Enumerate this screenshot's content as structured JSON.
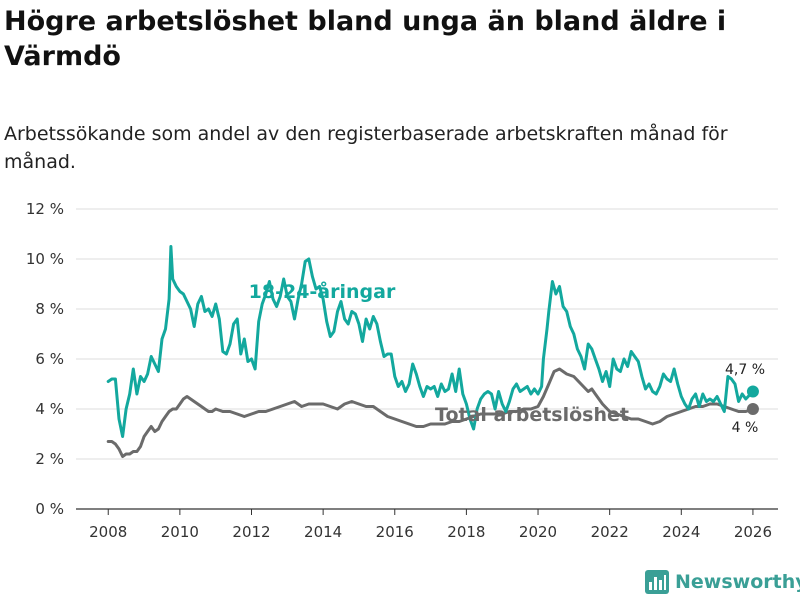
{
  "title": "Högre arbetslöshet bland unga än bland äldre i Värmdö",
  "subtitle": "Arbetssökande som andel av den registerbaserade arbetskraften månad för månad.",
  "brand": "Newsworthy",
  "colors": {
    "young": "#13a89e",
    "total": "#6b6b6b",
    "grid": "#dddddd",
    "brand": "#3a9f96"
  },
  "chart_data": {
    "type": "line",
    "title": "Högre arbetslöshet bland unga än bland äldre i Värmdö",
    "subtitle": "Arbetssökande som andel av den registerbaserade arbetskraften månad för månad.",
    "xlim": [
      2007.1,
      2026.7
    ],
    "ylim": [
      0,
      12
    ],
    "x_ticks": [
      2008,
      2010,
      2012,
      2014,
      2016,
      2018,
      2020,
      2022,
      2024,
      2026
    ],
    "y_ticks": [
      0,
      2,
      4,
      6,
      8,
      10,
      12
    ],
    "y_tick_labels": [
      "0 %",
      "2 %",
      "4 %",
      "6 %",
      "8 %",
      "10 %",
      "12 %"
    ],
    "grid": true,
    "series": [
      {
        "name": "18-24-åringar",
        "label": "18-24-åringar",
        "end_label": "4,7 %",
        "color": "#13a89e",
        "points": [
          [
            2008.0,
            5.1
          ],
          [
            2008.1,
            5.2
          ],
          [
            2008.2,
            5.2
          ],
          [
            2008.3,
            3.6
          ],
          [
            2008.4,
            2.9
          ],
          [
            2008.5,
            4.0
          ],
          [
            2008.6,
            4.6
          ],
          [
            2008.7,
            5.6
          ],
          [
            2008.8,
            4.6
          ],
          [
            2008.9,
            5.3
          ],
          [
            2009.0,
            5.1
          ],
          [
            2009.1,
            5.4
          ],
          [
            2009.2,
            6.1
          ],
          [
            2009.3,
            5.8
          ],
          [
            2009.4,
            5.5
          ],
          [
            2009.5,
            6.8
          ],
          [
            2009.6,
            7.2
          ],
          [
            2009.7,
            8.4
          ],
          [
            2009.75,
            10.5
          ],
          [
            2009.8,
            9.2
          ],
          [
            2009.9,
            8.9
          ],
          [
            2010.0,
            8.7
          ],
          [
            2010.1,
            8.6
          ],
          [
            2010.2,
            8.3
          ],
          [
            2010.3,
            8.0
          ],
          [
            2010.4,
            7.3
          ],
          [
            2010.5,
            8.2
          ],
          [
            2010.6,
            8.5
          ],
          [
            2010.7,
            7.9
          ],
          [
            2010.8,
            8.0
          ],
          [
            2010.9,
            7.7
          ],
          [
            2011.0,
            8.2
          ],
          [
            2011.1,
            7.6
          ],
          [
            2011.2,
            6.3
          ],
          [
            2011.3,
            6.2
          ],
          [
            2011.4,
            6.6
          ],
          [
            2011.5,
            7.4
          ],
          [
            2011.6,
            7.6
          ],
          [
            2011.7,
            6.2
          ],
          [
            2011.8,
            6.8
          ],
          [
            2011.9,
            5.9
          ],
          [
            2012.0,
            6.0
          ],
          [
            2012.1,
            5.6
          ],
          [
            2012.2,
            7.5
          ],
          [
            2012.3,
            8.2
          ],
          [
            2012.4,
            8.6
          ],
          [
            2012.5,
            9.1
          ],
          [
            2012.6,
            8.4
          ],
          [
            2012.7,
            8.1
          ],
          [
            2012.8,
            8.5
          ],
          [
            2012.9,
            9.2
          ],
          [
            2013.0,
            8.5
          ],
          [
            2013.1,
            8.3
          ],
          [
            2013.2,
            7.6
          ],
          [
            2013.3,
            8.4
          ],
          [
            2013.4,
            9.0
          ],
          [
            2013.5,
            9.9
          ],
          [
            2013.6,
            10.0
          ],
          [
            2013.7,
            9.3
          ],
          [
            2013.8,
            8.8
          ],
          [
            2013.9,
            8.9
          ],
          [
            2014.0,
            8.4
          ],
          [
            2014.1,
            7.5
          ],
          [
            2014.2,
            6.9
          ],
          [
            2014.3,
            7.1
          ],
          [
            2014.4,
            7.9
          ],
          [
            2014.5,
            8.3
          ],
          [
            2014.6,
            7.6
          ],
          [
            2014.7,
            7.4
          ],
          [
            2014.8,
            7.9
          ],
          [
            2014.9,
            7.8
          ],
          [
            2015.0,
            7.4
          ],
          [
            2015.1,
            6.7
          ],
          [
            2015.2,
            7.6
          ],
          [
            2015.3,
            7.2
          ],
          [
            2015.4,
            7.7
          ],
          [
            2015.5,
            7.4
          ],
          [
            2015.6,
            6.7
          ],
          [
            2015.7,
            6.1
          ],
          [
            2015.8,
            6.2
          ],
          [
            2015.9,
            6.2
          ],
          [
            2016.0,
            5.3
          ],
          [
            2016.1,
            4.9
          ],
          [
            2016.2,
            5.1
          ],
          [
            2016.3,
            4.7
          ],
          [
            2016.4,
            5.0
          ],
          [
            2016.5,
            5.8
          ],
          [
            2016.6,
            5.4
          ],
          [
            2016.7,
            4.9
          ],
          [
            2016.8,
            4.5
          ],
          [
            2016.9,
            4.9
          ],
          [
            2017.0,
            4.8
          ],
          [
            2017.1,
            4.9
          ],
          [
            2017.2,
            4.5
          ],
          [
            2017.3,
            5.0
          ],
          [
            2017.4,
            4.7
          ],
          [
            2017.5,
            4.8
          ],
          [
            2017.6,
            5.4
          ],
          [
            2017.7,
            4.7
          ],
          [
            2017.8,
            5.6
          ],
          [
            2017.9,
            4.6
          ],
          [
            2018.0,
            4.2
          ],
          [
            2018.1,
            3.6
          ],
          [
            2018.2,
            3.2
          ],
          [
            2018.3,
            4.0
          ],
          [
            2018.4,
            4.4
          ],
          [
            2018.5,
            4.6
          ],
          [
            2018.6,
            4.7
          ],
          [
            2018.7,
            4.6
          ],
          [
            2018.8,
            4.0
          ],
          [
            2018.9,
            4.7
          ],
          [
            2019.0,
            4.2
          ],
          [
            2019.1,
            3.9
          ],
          [
            2019.2,
            4.3
          ],
          [
            2019.3,
            4.8
          ],
          [
            2019.4,
            5.0
          ],
          [
            2019.5,
            4.7
          ],
          [
            2019.6,
            4.8
          ],
          [
            2019.7,
            4.9
          ],
          [
            2019.8,
            4.6
          ],
          [
            2019.9,
            4.8
          ],
          [
            2020.0,
            4.6
          ],
          [
            2020.1,
            4.9
          ],
          [
            2020.15,
            6.0
          ],
          [
            2020.25,
            7.2
          ],
          [
            2020.3,
            7.9
          ],
          [
            2020.4,
            9.1
          ],
          [
            2020.5,
            8.6
          ],
          [
            2020.6,
            8.9
          ],
          [
            2020.7,
            8.1
          ],
          [
            2020.8,
            7.9
          ],
          [
            2020.9,
            7.3
          ],
          [
            2021.0,
            7.0
          ],
          [
            2021.1,
            6.4
          ],
          [
            2021.2,
            6.1
          ],
          [
            2021.3,
            5.6
          ],
          [
            2021.4,
            6.6
          ],
          [
            2021.5,
            6.4
          ],
          [
            2021.6,
            6.0
          ],
          [
            2021.7,
            5.6
          ],
          [
            2021.8,
            5.1
          ],
          [
            2021.9,
            5.5
          ],
          [
            2022.0,
            4.9
          ],
          [
            2022.1,
            6.0
          ],
          [
            2022.2,
            5.6
          ],
          [
            2022.3,
            5.5
          ],
          [
            2022.4,
            6.0
          ],
          [
            2022.5,
            5.7
          ],
          [
            2022.6,
            6.3
          ],
          [
            2022.7,
            6.1
          ],
          [
            2022.8,
            5.9
          ],
          [
            2022.9,
            5.3
          ],
          [
            2023.0,
            4.8
          ],
          [
            2023.1,
            5.0
          ],
          [
            2023.2,
            4.7
          ],
          [
            2023.3,
            4.6
          ],
          [
            2023.4,
            4.9
          ],
          [
            2023.5,
            5.4
          ],
          [
            2023.6,
            5.2
          ],
          [
            2023.7,
            5.1
          ],
          [
            2023.8,
            5.6
          ],
          [
            2023.9,
            5.0
          ],
          [
            2024.0,
            4.5
          ],
          [
            2024.1,
            4.2
          ],
          [
            2024.2,
            4.0
          ],
          [
            2024.3,
            4.4
          ],
          [
            2024.4,
            4.6
          ],
          [
            2024.5,
            4.1
          ],
          [
            2024.6,
            4.6
          ],
          [
            2024.7,
            4.3
          ],
          [
            2024.8,
            4.4
          ],
          [
            2024.9,
            4.3
          ],
          [
            2025.0,
            4.5
          ],
          [
            2025.1,
            4.2
          ],
          [
            2025.2,
            3.9
          ],
          [
            2025.3,
            5.3
          ],
          [
            2025.4,
            5.2
          ],
          [
            2025.5,
            5.0
          ],
          [
            2025.6,
            4.3
          ],
          [
            2025.7,
            4.6
          ],
          [
            2025.8,
            4.4
          ],
          [
            2026.0,
            4.7
          ]
        ]
      },
      {
        "name": "Total arbetslöshet",
        "label": "Total arbetslöshet",
        "end_label": "4 %",
        "color": "#6b6b6b",
        "points": [
          [
            2008.0,
            2.7
          ],
          [
            2008.1,
            2.7
          ],
          [
            2008.2,
            2.6
          ],
          [
            2008.3,
            2.4
          ],
          [
            2008.4,
            2.1
          ],
          [
            2008.5,
            2.2
          ],
          [
            2008.6,
            2.2
          ],
          [
            2008.7,
            2.3
          ],
          [
            2008.8,
            2.3
          ],
          [
            2008.9,
            2.5
          ],
          [
            2009.0,
            2.9
          ],
          [
            2009.1,
            3.1
          ],
          [
            2009.2,
            3.3
          ],
          [
            2009.3,
            3.1
          ],
          [
            2009.4,
            3.2
          ],
          [
            2009.5,
            3.5
          ],
          [
            2009.6,
            3.7
          ],
          [
            2009.7,
            3.9
          ],
          [
            2009.8,
            4.0
          ],
          [
            2009.9,
            4.0
          ],
          [
            2010.0,
            4.2
          ],
          [
            2010.1,
            4.4
          ],
          [
            2010.2,
            4.5
          ],
          [
            2010.3,
            4.4
          ],
          [
            2010.4,
            4.3
          ],
          [
            2010.5,
            4.2
          ],
          [
            2010.6,
            4.1
          ],
          [
            2010.7,
            4.0
          ],
          [
            2010.8,
            3.9
          ],
          [
            2010.9,
            3.9
          ],
          [
            2011.0,
            4.0
          ],
          [
            2011.2,
            3.9
          ],
          [
            2011.4,
            3.9
          ],
          [
            2011.6,
            3.8
          ],
          [
            2011.8,
            3.7
          ],
          [
            2012.0,
            3.8
          ],
          [
            2012.2,
            3.9
          ],
          [
            2012.4,
            3.9
          ],
          [
            2012.6,
            4.0
          ],
          [
            2012.8,
            4.1
          ],
          [
            2013.0,
            4.2
          ],
          [
            2013.2,
            4.3
          ],
          [
            2013.4,
            4.1
          ],
          [
            2013.6,
            4.2
          ],
          [
            2013.8,
            4.2
          ],
          [
            2014.0,
            4.2
          ],
          [
            2014.2,
            4.1
          ],
          [
            2014.4,
            4.0
          ],
          [
            2014.6,
            4.2
          ],
          [
            2014.8,
            4.3
          ],
          [
            2015.0,
            4.2
          ],
          [
            2015.2,
            4.1
          ],
          [
            2015.4,
            4.1
          ],
          [
            2015.6,
            3.9
          ],
          [
            2015.8,
            3.7
          ],
          [
            2016.0,
            3.6
          ],
          [
            2016.2,
            3.5
          ],
          [
            2016.4,
            3.4
          ],
          [
            2016.6,
            3.3
          ],
          [
            2016.8,
            3.3
          ],
          [
            2017.0,
            3.4
          ],
          [
            2017.2,
            3.4
          ],
          [
            2017.4,
            3.4
          ],
          [
            2017.6,
            3.5
          ],
          [
            2017.8,
            3.5
          ],
          [
            2018.0,
            3.6
          ],
          [
            2018.2,
            3.7
          ],
          [
            2018.4,
            3.8
          ],
          [
            2018.6,
            3.8
          ],
          [
            2018.8,
            3.8
          ],
          [
            2019.0,
            3.8
          ],
          [
            2019.2,
            3.9
          ],
          [
            2019.4,
            3.9
          ],
          [
            2019.6,
            4.0
          ],
          [
            2019.8,
            4.0
          ],
          [
            2020.0,
            4.1
          ],
          [
            2020.15,
            4.5
          ],
          [
            2020.3,
            5.0
          ],
          [
            2020.45,
            5.5
          ],
          [
            2020.6,
            5.6
          ],
          [
            2020.8,
            5.4
          ],
          [
            2021.0,
            5.3
          ],
          [
            2021.2,
            5.0
          ],
          [
            2021.4,
            4.7
          ],
          [
            2021.5,
            4.8
          ],
          [
            2021.6,
            4.6
          ],
          [
            2021.8,
            4.2
          ],
          [
            2022.0,
            3.9
          ],
          [
            2022.2,
            3.8
          ],
          [
            2022.4,
            3.7
          ],
          [
            2022.6,
            3.6
          ],
          [
            2022.8,
            3.6
          ],
          [
            2023.0,
            3.5
          ],
          [
            2023.2,
            3.4
          ],
          [
            2023.4,
            3.5
          ],
          [
            2023.6,
            3.7
          ],
          [
            2023.8,
            3.8
          ],
          [
            2024.0,
            3.9
          ],
          [
            2024.2,
            4.0
          ],
          [
            2024.4,
            4.1
          ],
          [
            2024.6,
            4.1
          ],
          [
            2024.8,
            4.2
          ],
          [
            2025.0,
            4.2
          ],
          [
            2025.2,
            4.1
          ],
          [
            2025.4,
            4.0
          ],
          [
            2025.6,
            3.9
          ],
          [
            2025.8,
            3.9
          ],
          [
            2026.0,
            4.0
          ]
        ]
      }
    ]
  }
}
